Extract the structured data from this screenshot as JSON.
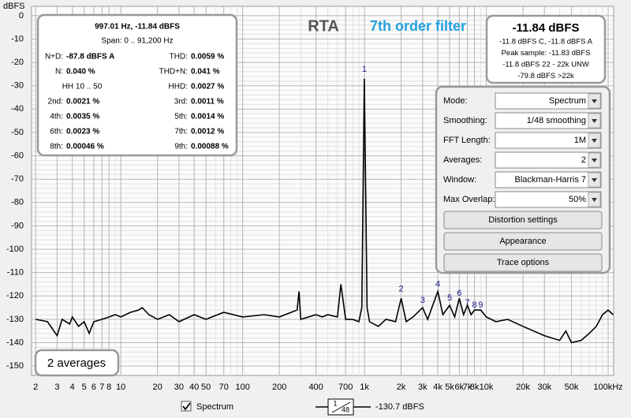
{
  "chart_data": {
    "type": "line",
    "y_label": "dBFS",
    "log_x": true,
    "grid": true,
    "minor_grid": true,
    "title": "RTA",
    "subtitle": "7th order filter",
    "xlim": [
      1.85,
      111000
    ],
    "ylim": [
      -154,
      4
    ],
    "xticks": [
      2,
      3,
      4,
      5,
      6,
      7,
      8,
      10,
      20,
      30,
      40,
      50,
      70,
      100,
      200,
      400,
      700,
      {
        "value": 1000,
        "label": "1k"
      },
      {
        "value": 2000,
        "label": "2k"
      },
      {
        "value": 3000,
        "label": "3k"
      },
      {
        "value": 4000,
        "label": "4k"
      },
      {
        "value": 5000,
        "label": "5k"
      },
      {
        "value": 6000,
        "label": "6k"
      },
      {
        "value": 7000,
        "label": "7k"
      },
      {
        "value": 8000,
        "label": "8k"
      },
      {
        "value": 10000,
        "label": "10k"
      },
      {
        "value": 20000,
        "label": "20k"
      },
      {
        "value": 30000,
        "label": "30k"
      },
      {
        "value": 50000,
        "label": "50k"
      },
      {
        "value": 100000,
        "label": "100kHz"
      }
    ],
    "yticks": [
      0,
      -10,
      -20,
      -30,
      -40,
      -50,
      -60,
      -70,
      -80,
      -90,
      -100,
      -110,
      -120,
      -130,
      -140,
      -150
    ],
    "series": [
      {
        "name": "Spectrum",
        "color": "#000000",
        "x": [
          2,
          2.5,
          3,
          3.3,
          3.8,
          4,
          4.5,
          5,
          5.5,
          6,
          7,
          8,
          9,
          10,
          12,
          14,
          15,
          17,
          20,
          25,
          30,
          40,
          50,
          70,
          100,
          150,
          200,
          280,
          290,
          300,
          400,
          450,
          500,
          600,
          640,
          700,
          800,
          900,
          950,
          997,
          1050,
          1100,
          1300,
          1500,
          1800,
          2000,
          2200,
          2500,
          3000,
          3300,
          4000,
          4400,
          5000,
          5500,
          6000,
          6500,
          7000,
          7500,
          8000,
          9000,
          10000,
          12000,
          15000,
          20000,
          30000,
          40000,
          45000,
          50000,
          60000,
          70000,
          80000,
          90000,
          100000,
          110000
        ],
        "values": [
          -130,
          -131,
          -137,
          -130,
          -132,
          -129,
          -133,
          -131,
          -136,
          -131,
          -130,
          -129,
          -128,
          -129,
          -127,
          -126,
          -125,
          -128,
          -130,
          -128,
          -131,
          -128,
          -130,
          -127,
          -129,
          -128,
          -129,
          -126,
          -118,
          -130,
          -128,
          -129,
          -128,
          -129,
          -115,
          -130,
          -130,
          -131,
          -125,
          -27,
          -125,
          -131,
          -133,
          -130,
          -131,
          -121,
          -131,
          -129,
          -125,
          -130,
          -118,
          -128,
          -124,
          -129,
          -121,
          -128,
          -124,
          -128,
          -126,
          -126,
          -129,
          -131,
          -130,
          -133,
          -137,
          -139,
          -135,
          -140,
          -139,
          -136,
          -133,
          -128,
          -126,
          -128
        ]
      }
    ],
    "annotations": [
      {
        "text": "1",
        "x": 997,
        "y": -23
      },
      {
        "text": "2",
        "x": 2000,
        "y": -117
      },
      {
        "text": "3",
        "x": 3000,
        "y": -122
      },
      {
        "text": "4",
        "x": 4000,
        "y": -115
      },
      {
        "text": "5",
        "x": 5000,
        "y": -121
      },
      {
        "text": "6",
        "x": 6000,
        "y": -119
      },
      {
        "text": "7",
        "x": 7000,
        "y": -123
      },
      {
        "text": "8",
        "x": 8000,
        "y": -124
      },
      {
        "text": "9",
        "x": 9000,
        "y": -124
      }
    ],
    "legend_readout": "-130.7 dBFS",
    "smoothing_icon": {
      "numerator": "1",
      "denominator": "48"
    }
  },
  "info_box": {
    "cursor": "997.01 Hz, -11.84 dBFS",
    "span": "Span: 0 .. 91,200 Hz",
    "rows": [
      [
        [
          "N+D:",
          "-87.8 dBFS A"
        ],
        [
          "THD:",
          "0.0059 %"
        ]
      ],
      [
        [
          "N:",
          "0.040 %"
        ],
        [
          "THD+N:",
          "0.041 %"
        ]
      ],
      [
        [
          "",
          "HH 10 .. 50"
        ],
        [
          "HHD:",
          "0.0027 %"
        ]
      ],
      [
        [
          "2nd:",
          "0.0021 %"
        ],
        [
          "3rd:",
          "0.0011 %"
        ]
      ],
      [
        [
          "4th:",
          "0.0035 %"
        ],
        [
          "5th:",
          "0.0014 %"
        ]
      ],
      [
        [
          "6th:",
          "0.0023 %"
        ],
        [
          "7th:",
          "0.0012 %"
        ]
      ],
      [
        [
          "8th:",
          "0.00046 %"
        ],
        [
          "9th:",
          "0.00088 %"
        ]
      ]
    ]
  },
  "level_box": {
    "level": "-11.84 dBFS",
    "lines": [
      "-11.8 dBFS C, -11.8 dBFS A",
      "Peak sample: -11.83 dBFS",
      "-11.8 dBFS 22 - 22k UNW",
      "-79.8 dBFS >22k"
    ]
  },
  "settings": {
    "rows": [
      [
        "Mode:",
        "Spectrum"
      ],
      [
        "Smoothing:",
        "1/48 smoothing"
      ],
      [
        "FFT Length:",
        "1M"
      ],
      [
        "Averages:",
        "2"
      ],
      [
        "Window:",
        "Blackman-Harris 7"
      ],
      [
        "Max Overlap:",
        "50%"
      ]
    ],
    "buttons": [
      "Distortion settings",
      "Appearance",
      "Trace options"
    ]
  },
  "averages_box": "2 averages"
}
